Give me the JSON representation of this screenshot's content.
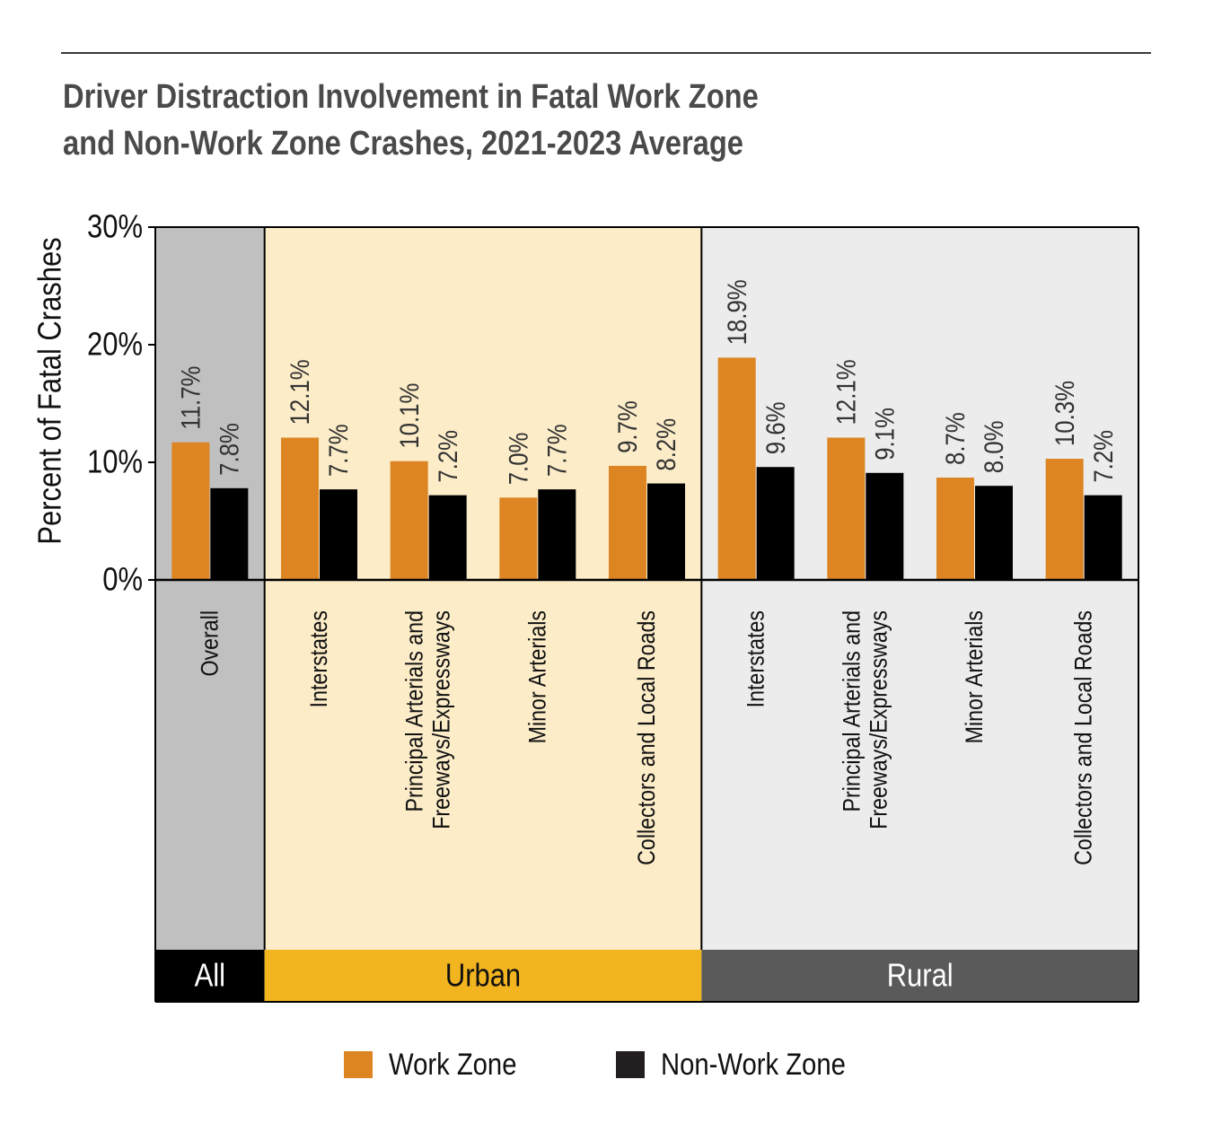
{
  "title_lines": [
    "Driver Distraction Involvement in Fatal Work Zone",
    "and Non-Work Zone Crashes, 2021-2023 Average"
  ],
  "chart_data": {
    "type": "bar",
    "title": "Driver Distraction Involvement in Fatal Work Zone and Non-Work Zone Crashes, 2021-2023 Average",
    "ylabel": "Percent of Fatal Crashes",
    "xlabel": "",
    "ylim": [
      0,
      30
    ],
    "yticks": [
      "0%",
      "10%",
      "20%",
      "30%"
    ],
    "grid": false,
    "legend_position": "bottom",
    "groups": [
      {
        "label": "All",
        "color": "#000000",
        "text_color": "#ffffff",
        "background": "#c0c0c0",
        "categories": [
          0
        ]
      },
      {
        "label": "Urban",
        "color": "#f2b41f",
        "text_color": "#111111",
        "background": "#fcecc8",
        "categories": [
          1,
          2,
          3,
          4
        ]
      },
      {
        "label": "Rural",
        "color": "#5a5a5a",
        "text_color": "#ffffff",
        "background": "#ececec",
        "categories": [
          5,
          6,
          7,
          8
        ]
      }
    ],
    "categories": [
      [
        "Overall"
      ],
      [
        "Interstates"
      ],
      [
        "Principal Arterials and",
        "Freeways/Expressways"
      ],
      [
        "Minor Arterials"
      ],
      [
        "Collectors and Local Roads"
      ],
      [
        "Interstates"
      ],
      [
        "Principal Arterials and",
        "Freeways/Expressways"
      ],
      [
        "Minor Arterials"
      ],
      [
        "Collectors and Local Roads"
      ]
    ],
    "series": [
      {
        "name": "Work Zone",
        "color": "#dc8522",
        "values": [
          11.7,
          12.1,
          10.1,
          7.0,
          9.7,
          18.9,
          12.1,
          8.7,
          10.3
        ],
        "labels": [
          "11.7%",
          "12.1%",
          "10.1%",
          "7.0%",
          "9.7%",
          "18.9%",
          "12.1%",
          "8.7%",
          "10.3%"
        ]
      },
      {
        "name": "Non-Work Zone",
        "color": "#000000",
        "values": [
          7.8,
          7.7,
          7.2,
          7.7,
          8.2,
          9.6,
          9.1,
          8.0,
          7.2
        ],
        "labels": [
          "7.8%",
          "7.7%",
          "7.2%",
          "7.7%",
          "8.2%",
          "9.6%",
          "9.1%",
          "8.0%",
          "7.2%"
        ]
      }
    ]
  },
  "legend": [
    {
      "label": "Work Zone",
      "color": "#dc8522"
    },
    {
      "label": "Non-Work Zone",
      "color": "#231f20"
    }
  ]
}
